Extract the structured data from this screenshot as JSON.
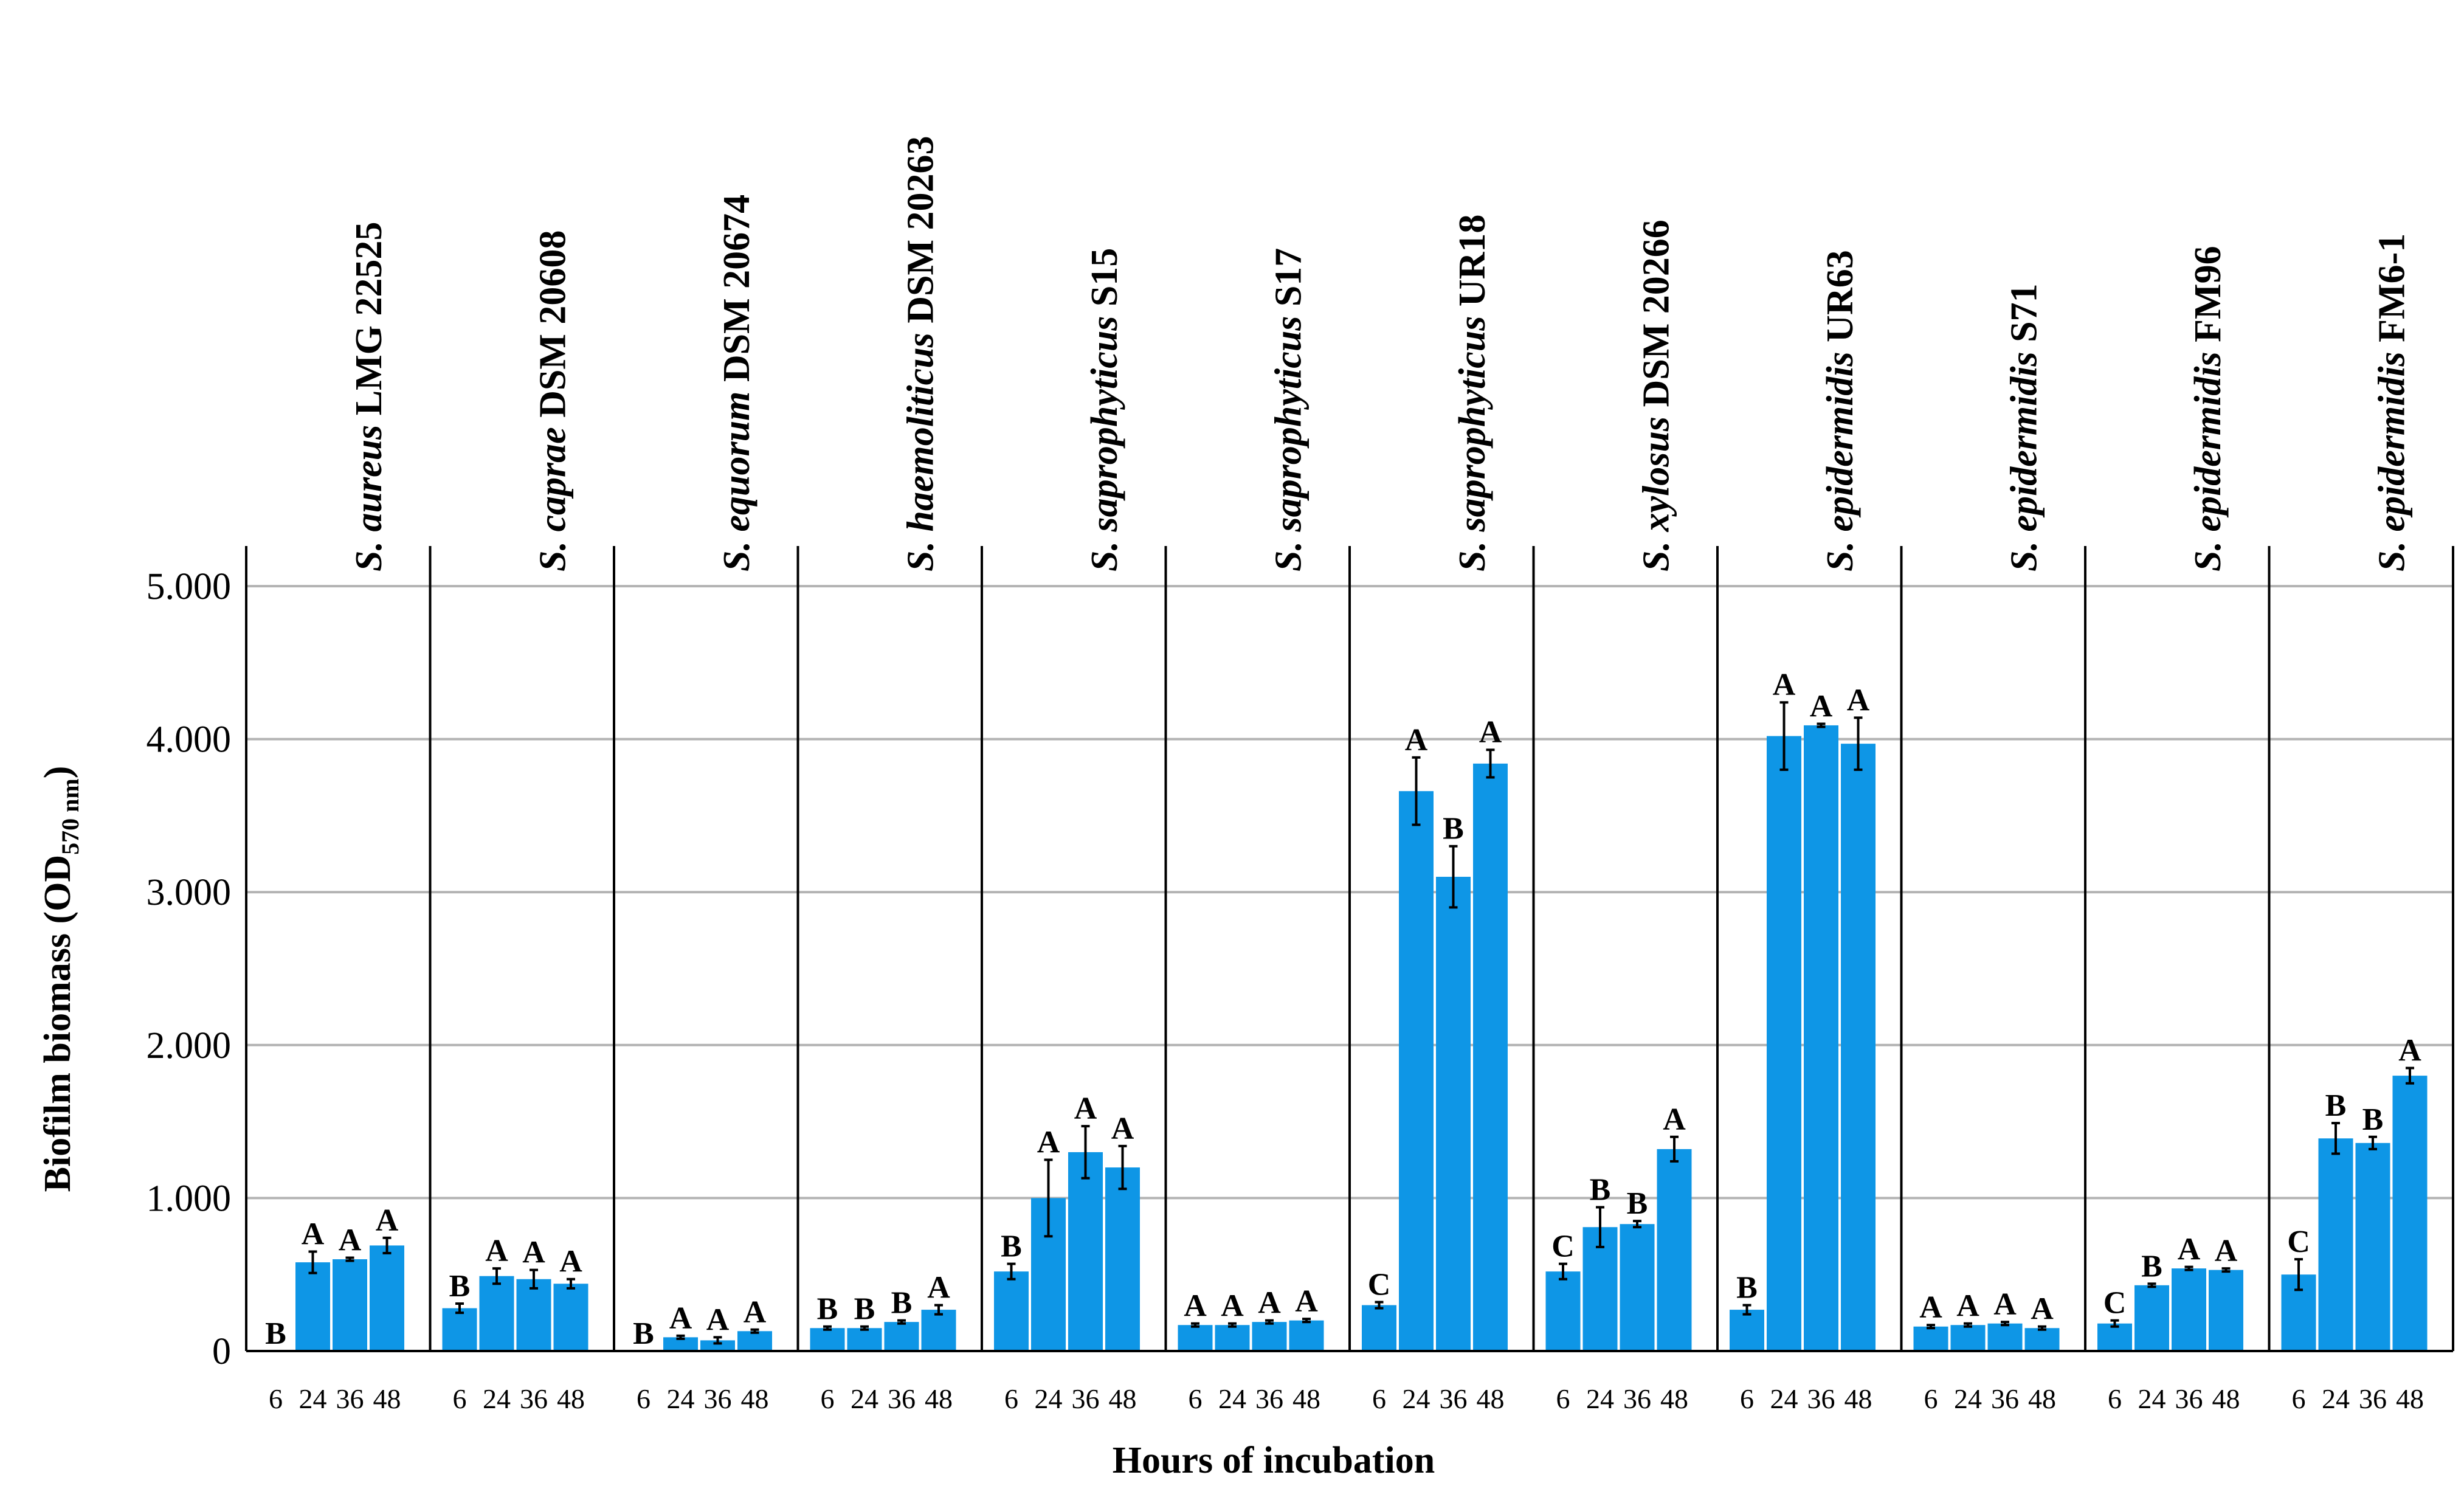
{
  "chart_data": {
    "type": "bar",
    "ylabel": "Biofilm biomass (OD",
    "ylabel_sub": "570 nm",
    "ylabel_close": ")",
    "xlabel": "Hours of incubation",
    "ylim": [
      0,
      5.3
    ],
    "yticks": [
      0,
      1,
      2,
      3,
      4,
      5
    ],
    "ytick_labels": [
      "0",
      "1.000",
      "2.000",
      "3.000",
      "4.000",
      "5.000"
    ],
    "categories": [
      "6",
      "24",
      "36",
      "48"
    ],
    "bar_color": "#0e96e6",
    "grid_color": "#b3b3b3",
    "panels": [
      {
        "genus": "S.",
        "species": "aureus",
        "strain": "LMG 22525",
        "values": [
          0.0,
          0.58,
          0.6,
          0.69
        ],
        "errors": [
          0,
          0.07,
          0.01,
          0.05
        ],
        "letters": [
          "B",
          "A",
          "A",
          "A"
        ]
      },
      {
        "genus": "S.",
        "species": "caprae",
        "strain": "DSM 20608",
        "values": [
          0.28,
          0.49,
          0.47,
          0.44
        ],
        "errors": [
          0.03,
          0.05,
          0.06,
          0.03
        ],
        "letters": [
          "B",
          "A",
          "A",
          "A"
        ]
      },
      {
        "genus": "S.",
        "species": "equorum",
        "strain": "DSM 20674",
        "values": [
          0.0,
          0.09,
          0.07,
          0.13
        ],
        "errors": [
          0,
          0.01,
          0.02,
          0.01
        ],
        "letters": [
          "B",
          "A",
          "A",
          "A"
        ]
      },
      {
        "genus": "S.",
        "species": "haemoliticus",
        "strain": "DSM 20263",
        "values": [
          0.15,
          0.15,
          0.19,
          0.27
        ],
        "errors": [
          0.01,
          0.01,
          0.01,
          0.03
        ],
        "letters": [
          "B",
          "B",
          "B",
          "A"
        ]
      },
      {
        "genus": "S.",
        "species": "saprophyticus",
        "strain": "S15",
        "values": [
          0.52,
          1.0,
          1.3,
          1.2
        ],
        "errors": [
          0.05,
          0.25,
          0.17,
          0.14
        ],
        "letters": [
          "B",
          "A",
          "A",
          "A"
        ]
      },
      {
        "genus": "S.",
        "species": "saprophyticus",
        "strain": "S17",
        "values": [
          0.17,
          0.17,
          0.19,
          0.2
        ],
        "errors": [
          0.01,
          0.01,
          0.01,
          0.01
        ],
        "letters": [
          "A",
          "A",
          "A",
          "A"
        ]
      },
      {
        "genus": "S.",
        "species": "saprophyticus",
        "strain": "UR18",
        "values": [
          0.3,
          3.66,
          3.1,
          3.84
        ],
        "errors": [
          0.02,
          0.22,
          0.2,
          0.09
        ],
        "letters": [
          "C",
          "A",
          "B",
          "A"
        ]
      },
      {
        "genus": "S.",
        "species": "xylosus",
        "strain": "DSM 20266",
        "values": [
          0.52,
          0.81,
          0.83,
          1.32
        ],
        "errors": [
          0.05,
          0.13,
          0.02,
          0.08
        ],
        "letters": [
          "C",
          "B",
          "B",
          "A"
        ]
      },
      {
        "genus": "S.",
        "species": "epidermidis",
        "strain": "UR63",
        "values": [
          0.27,
          4.02,
          4.09,
          3.97
        ],
        "errors": [
          0.03,
          0.22,
          0.01,
          0.17
        ],
        "letters": [
          "B",
          "A",
          "A",
          "A"
        ]
      },
      {
        "genus": "S.",
        "species": "epidermidis",
        "strain": "S71",
        "values": [
          0.16,
          0.17,
          0.18,
          0.15
        ],
        "errors": [
          0.01,
          0.01,
          0.01,
          0.01
        ],
        "letters": [
          "A",
          "A",
          "A",
          "A"
        ]
      },
      {
        "genus": "S.",
        "species": "epidermidis",
        "strain": "FM96",
        "values": [
          0.18,
          0.43,
          0.54,
          0.53
        ],
        "errors": [
          0.02,
          0.01,
          0.01,
          0.01
        ],
        "letters": [
          "C",
          "B",
          "A",
          "A"
        ]
      },
      {
        "genus": "S.",
        "species": "epidermidis",
        "strain": "FM6-1",
        "values": [
          0.5,
          1.39,
          1.36,
          1.8
        ],
        "errors": [
          0.1,
          0.1,
          0.04,
          0.05
        ],
        "letters": [
          "C",
          "B",
          "B",
          "A"
        ]
      }
    ]
  }
}
